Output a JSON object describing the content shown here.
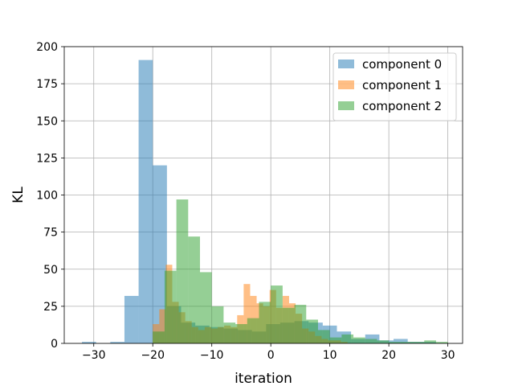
{
  "chart_data": {
    "type": "histogram",
    "title": "",
    "xlabel": "iteration",
    "ylabel": "KL",
    "xlim": [
      -35,
      32.5
    ],
    "ylim": [
      0,
      200
    ],
    "xticks": [
      -30,
      -20,
      -10,
      0,
      10,
      20,
      30
    ],
    "yticks": [
      0,
      25,
      50,
      75,
      100,
      125,
      150,
      175,
      200
    ],
    "grid": true,
    "legend_position": "upper right",
    "series": [
      {
        "name": "component 0",
        "color": "#1f77b4",
        "opacity": 0.5,
        "bins": [
          {
            "x0": -32.0,
            "x1": -29.6,
            "count": 1
          },
          {
            "x0": -27.2,
            "x1": -24.8,
            "count": 1
          },
          {
            "x0": -24.8,
            "x1": -22.4,
            "count": 32
          },
          {
            "x0": -22.4,
            "x1": -20.0,
            "count": 191
          },
          {
            "x0": -20.0,
            "x1": -17.6,
            "count": 120
          },
          {
            "x0": -17.6,
            "x1": -15.2,
            "count": 25
          },
          {
            "x0": -15.2,
            "x1": -12.8,
            "count": 14
          },
          {
            "x0": -12.8,
            "x1": -10.4,
            "count": 12
          },
          {
            "x0": -10.4,
            "x1": -8.0,
            "count": 11
          },
          {
            "x0": -8.0,
            "x1": -5.6,
            "count": 10
          },
          {
            "x0": -5.6,
            "x1": -3.2,
            "count": 9
          },
          {
            "x0": -3.2,
            "x1": -0.8,
            "count": 8
          },
          {
            "x0": -0.8,
            "x1": 1.6,
            "count": 13
          },
          {
            "x0": 1.6,
            "x1": 4.0,
            "count": 14
          },
          {
            "x0": 4.0,
            "x1": 6.4,
            "count": 15
          },
          {
            "x0": 6.4,
            "x1": 8.8,
            "count": 14
          },
          {
            "x0": 8.8,
            "x1": 11.2,
            "count": 12
          },
          {
            "x0": 11.2,
            "x1": 13.6,
            "count": 8
          },
          {
            "x0": 13.6,
            "x1": 16.0,
            "count": 3
          },
          {
            "x0": 16.0,
            "x1": 18.4,
            "count": 6
          },
          {
            "x0": 18.4,
            "x1": 20.8,
            "count": 2
          },
          {
            "x0": 20.8,
            "x1": 23.2,
            "count": 3
          },
          {
            "x0": 23.2,
            "x1": 25.6,
            "count": 1
          },
          {
            "x0": 25.6,
            "x1": 28.0,
            "count": 1
          }
        ]
      },
      {
        "name": "component 1",
        "color": "#ff7f0e",
        "opacity": 0.5,
        "bins": [
          {
            "x0": -20.0,
            "x1": -18.9,
            "count": 13
          },
          {
            "x0": -18.9,
            "x1": -17.8,
            "count": 23
          },
          {
            "x0": -17.8,
            "x1": -16.7,
            "count": 53
          },
          {
            "x0": -16.7,
            "x1": -15.6,
            "count": 28
          },
          {
            "x0": -15.6,
            "x1": -14.5,
            "count": 21
          },
          {
            "x0": -14.5,
            "x1": -13.4,
            "count": 15
          },
          {
            "x0": -13.4,
            "x1": -12.3,
            "count": 11
          },
          {
            "x0": -12.3,
            "x1": -11.2,
            "count": 9
          },
          {
            "x0": -11.2,
            "x1": -10.1,
            "count": 11
          },
          {
            "x0": -10.1,
            "x1": -9.0,
            "count": 10
          },
          {
            "x0": -9.0,
            "x1": -7.9,
            "count": 11
          },
          {
            "x0": -7.9,
            "x1": -6.8,
            "count": 12
          },
          {
            "x0": -6.8,
            "x1": -5.7,
            "count": 11
          },
          {
            "x0": -5.7,
            "x1": -4.6,
            "count": 19
          },
          {
            "x0": -4.6,
            "x1": -3.5,
            "count": 40
          },
          {
            "x0": -3.5,
            "x1": -2.4,
            "count": 32
          },
          {
            "x0": -2.4,
            "x1": -1.3,
            "count": 27
          },
          {
            "x0": -1.3,
            "x1": -0.2,
            "count": 25
          },
          {
            "x0": -0.2,
            "x1": 0.9,
            "count": 36
          },
          {
            "x0": 0.9,
            "x1": 2.0,
            "count": 24
          },
          {
            "x0": 2.0,
            "x1": 3.1,
            "count": 32
          },
          {
            "x0": 3.1,
            "x1": 4.2,
            "count": 27
          },
          {
            "x0": 4.2,
            "x1": 5.3,
            "count": 20
          },
          {
            "x0": 5.3,
            "x1": 6.4,
            "count": 10
          },
          {
            "x0": 6.4,
            "x1": 7.5,
            "count": 8
          },
          {
            "x0": 7.5,
            "x1": 8.6,
            "count": 5
          },
          {
            "x0": 8.6,
            "x1": 9.7,
            "count": 3
          },
          {
            "x0": 9.7,
            "x1": 10.8,
            "count": 2
          },
          {
            "x0": 10.8,
            "x1": 11.9,
            "count": 2
          },
          {
            "x0": 11.9,
            "x1": 13.0,
            "count": 1
          }
        ]
      },
      {
        "name": "component 2",
        "color": "#2ca02c",
        "opacity": 0.5,
        "bins": [
          {
            "x0": -20.0,
            "x1": -18.0,
            "count": 8
          },
          {
            "x0": -18.0,
            "x1": -16.0,
            "count": 49
          },
          {
            "x0": -16.0,
            "x1": -14.0,
            "count": 97
          },
          {
            "x0": -14.0,
            "x1": -12.0,
            "count": 72
          },
          {
            "x0": -12.0,
            "x1": -10.0,
            "count": 48
          },
          {
            "x0": -10.0,
            "x1": -8.0,
            "count": 25
          },
          {
            "x0": -8.0,
            "x1": -6.0,
            "count": 14
          },
          {
            "x0": -6.0,
            "x1": -4.0,
            "count": 13
          },
          {
            "x0": -4.0,
            "x1": -2.0,
            "count": 17
          },
          {
            "x0": -2.0,
            "x1": 0.0,
            "count": 28
          },
          {
            "x0": 0.0,
            "x1": 2.0,
            "count": 39
          },
          {
            "x0": 2.0,
            "x1": 4.0,
            "count": 24
          },
          {
            "x0": 4.0,
            "x1": 6.0,
            "count": 26
          },
          {
            "x0": 6.0,
            "x1": 8.0,
            "count": 16
          },
          {
            "x0": 8.0,
            "x1": 10.0,
            "count": 9
          },
          {
            "x0": 10.0,
            "x1": 12.0,
            "count": 4
          },
          {
            "x0": 12.0,
            "x1": 14.0,
            "count": 6
          },
          {
            "x0": 14.0,
            "x1": 16.0,
            "count": 4
          },
          {
            "x0": 16.0,
            "x1": 18.0,
            "count": 3
          },
          {
            "x0": 18.0,
            "x1": 20.0,
            "count": 2
          },
          {
            "x0": 20.0,
            "x1": 22.0,
            "count": 1
          },
          {
            "x0": 22.0,
            "x1": 24.0,
            "count": 1
          },
          {
            "x0": 24.0,
            "x1": 26.0,
            "count": 1
          },
          {
            "x0": 26.0,
            "x1": 28.0,
            "count": 2
          },
          {
            "x0": 28.0,
            "x1": 30.0,
            "count": 1
          }
        ]
      }
    ]
  }
}
